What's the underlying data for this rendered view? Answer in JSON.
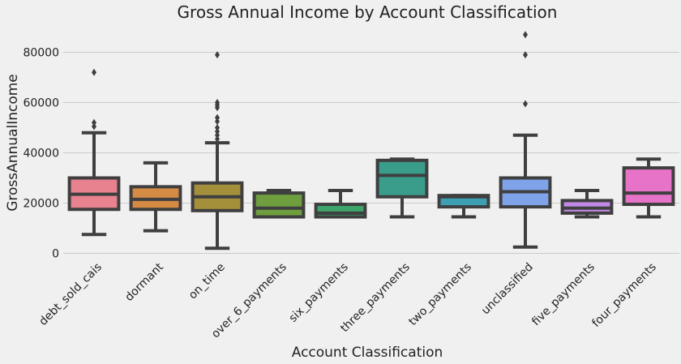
{
  "chart_data": {
    "type": "box",
    "title": "Gross Annual Income by Account Classification",
    "xlabel": "Account Classification",
    "ylabel": "GrossAnnualIncome",
    "ylim": [
      -3000,
      92000
    ],
    "yticks": [
      0,
      20000,
      40000,
      60000,
      80000
    ],
    "grid": "horizontal",
    "categories": [
      "debt_sold_cais",
      "dormant",
      "on_time",
      "over_6_payments",
      "six_payments",
      "three_payments",
      "two_payments",
      "unclassified",
      "five_payments",
      "four_payments"
    ],
    "boxes": [
      {
        "category": "debt_sold_cais",
        "whisker_low": 7500,
        "q1": 17500,
        "median": 23500,
        "q3": 30000,
        "whisker_high": 48000,
        "outliers": [
          50500,
          52000,
          72000
        ],
        "color": "#e8828f"
      },
      {
        "category": "dormant",
        "whisker_low": 9000,
        "q1": 17500,
        "median": 21500,
        "q3": 26500,
        "whisker_high": 36000,
        "outliers": [],
        "color": "#d68b45"
      },
      {
        "category": "on_time",
        "whisker_low": 2000,
        "q1": 17000,
        "median": 22500,
        "q3": 28000,
        "whisker_high": 44000,
        "outliers": [
          45500,
          47000,
          48500,
          50000,
          52500,
          54000,
          58000,
          59000,
          60000,
          79000
        ],
        "color": "#a48f3b"
      },
      {
        "category": "over_6_payments",
        "whisker_low": 14500,
        "q1": 14500,
        "median": 18000,
        "q3": 24000,
        "whisker_high": 25000,
        "outliers": [],
        "color": "#6e9e3e"
      },
      {
        "category": "six_payments",
        "whisker_low": 14500,
        "q1": 14500,
        "median": 16000,
        "q3": 19500,
        "whisker_high": 25000,
        "outliers": [],
        "color": "#3fa66b"
      },
      {
        "category": "three_payments",
        "whisker_low": 14500,
        "q1": 22500,
        "median": 31000,
        "q3": 37000,
        "whisker_high": 37500,
        "outliers": [],
        "color": "#3a9d8c"
      },
      {
        "category": "two_payments",
        "whisker_low": 14500,
        "q1": 18500,
        "median": 22500,
        "q3": 23000,
        "whisker_high": 23000,
        "outliers": [],
        "color": "#3d9fb3"
      },
      {
        "category": "unclassified",
        "whisker_low": 2500,
        "q1": 18500,
        "median": 24500,
        "q3": 30000,
        "whisker_high": 47000,
        "outliers": [
          59500,
          79000,
          87000
        ],
        "color": "#7ea3e8"
      },
      {
        "category": "five_payments",
        "whisker_low": 14500,
        "q1": 16000,
        "median": 18000,
        "q3": 21000,
        "whisker_high": 25000,
        "outliers": [],
        "color": "#c288e8"
      },
      {
        "category": "four_payments",
        "whisker_low": 14500,
        "q1": 19500,
        "median": 24000,
        "q3": 34000,
        "whisker_high": 37500,
        "outliers": [],
        "color": "#e773c8"
      }
    ]
  }
}
